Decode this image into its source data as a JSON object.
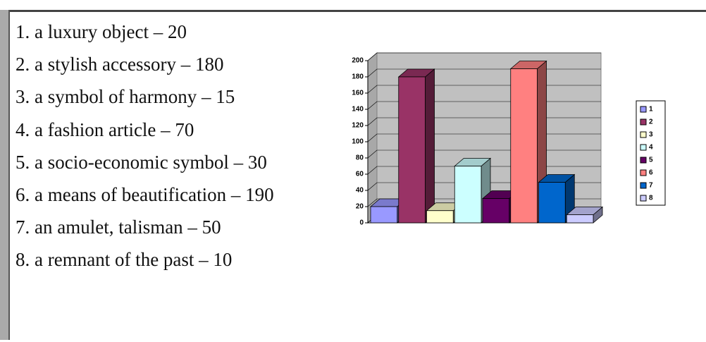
{
  "list": [
    "1. a luxury object – 20",
    "2. a stylish accessory  – 180",
    "3. a symbol of harmony – 15",
    "4. a fashion article – 70",
    "5.  a  socio-economic  symbol – 30",
    "6.  a  means  of  beautification – 190",
    "7. an amulet, talisman – 50",
    "8. a remnant of the past – 10"
  ],
  "chart_data": {
    "type": "bar3d",
    "categories": [
      "1",
      "2",
      "3",
      "4",
      "5",
      "6",
      "7",
      "8"
    ],
    "values": [
      20,
      180,
      15,
      70,
      30,
      190,
      50,
      10
    ],
    "colors": [
      "#9999ff",
      "#993366",
      "#ffffcc",
      "#ccffff",
      "#660066",
      "#ff8080",
      "#0066cc",
      "#ccccff"
    ],
    "ylim": [
      0,
      200
    ],
    "yticks": [
      0,
      20,
      40,
      60,
      80,
      100,
      120,
      140,
      160,
      180,
      200
    ],
    "grid": true,
    "legend": "right"
  }
}
